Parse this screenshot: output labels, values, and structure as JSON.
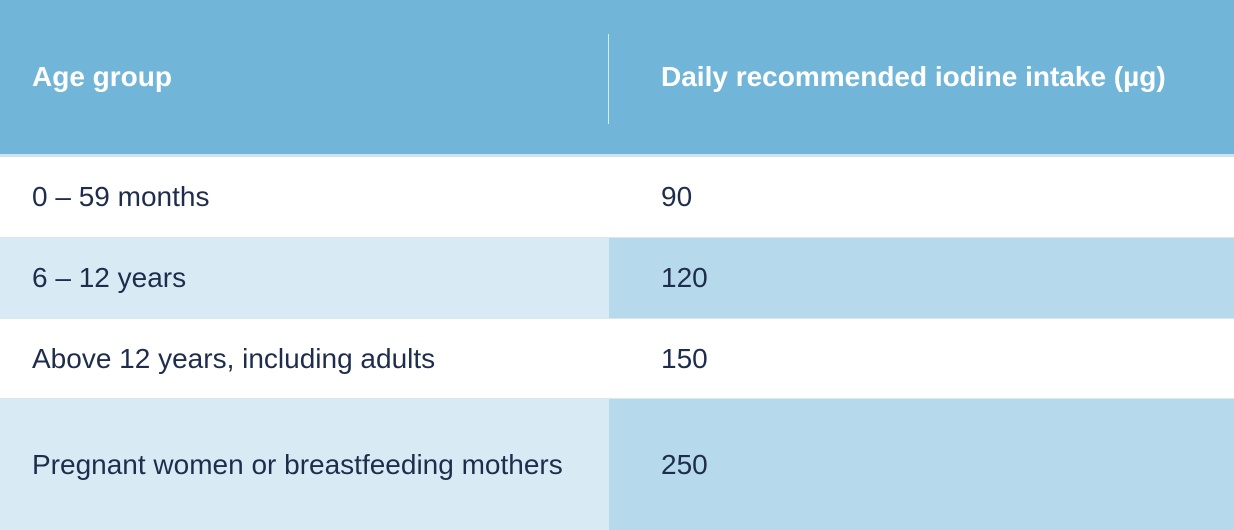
{
  "table": {
    "headers": [
      "Age group",
      "Daily recommended iodine intake (µg)"
    ],
    "rows": [
      {
        "age_group": "0 – 59 months",
        "intake": "90"
      },
      {
        "age_group": "6 – 12 years",
        "intake": "120"
      },
      {
        "age_group": "Above 12 years, including adults",
        "intake": "150"
      },
      {
        "age_group": "Pregnant women or breastfeeding mothers",
        "intake": "250"
      }
    ]
  },
  "colors": {
    "header_bg": "#71b6d9",
    "alt_row_col1": "#d8ebf5",
    "alt_row_col2": "#b6d9eb",
    "text": "#1f2d4d"
  }
}
